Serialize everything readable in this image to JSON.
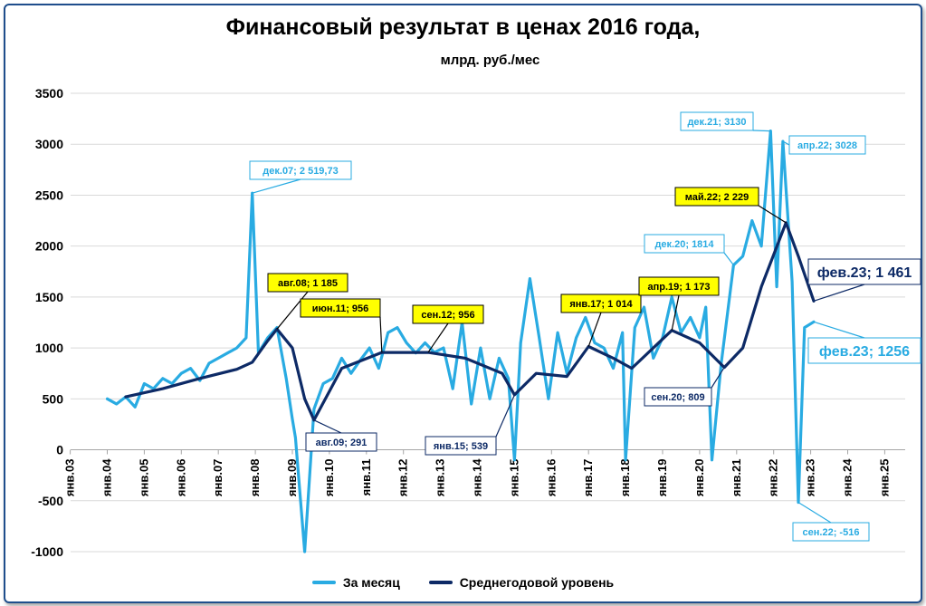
{
  "chart_data": {
    "type": "line",
    "title": "Финансовый результат в ценах 2016 года,",
    "subtitle": "млрд. руб./мес",
    "ylim": [
      -1000,
      3500
    ],
    "yticks": [
      -1000,
      -500,
      0,
      500,
      1000,
      1500,
      2000,
      2500,
      3000,
      3500
    ],
    "xlim": [
      "2003-01",
      "2025-12"
    ],
    "xticks": [
      "янв.03",
      "янв.04",
      "янв.05",
      "янв.06",
      "янв.07",
      "янв.08",
      "янв.09",
      "янв.10",
      "янв.11",
      "янв.12",
      "янв.13",
      "янв.14",
      "янв.15",
      "янв.16",
      "янв.17",
      "янв.18",
      "янв.19",
      "янв.20",
      "янв.21",
      "янв.22",
      "янв.23",
      "янв.24",
      "янв.25"
    ],
    "grid": "horizontal",
    "legend_position": "bottom",
    "colors": {
      "monthly": "#29abe2",
      "annual": "#0d2a66",
      "highlight": "#ffff00"
    },
    "series": [
      {
        "name": "За месяц",
        "x": [
          "2004-01",
          "2004-04",
          "2004-07",
          "2004-10",
          "2005-01",
          "2005-04",
          "2005-07",
          "2005-10",
          "2006-01",
          "2006-04",
          "2006-07",
          "2006-10",
          "2007-01",
          "2007-04",
          "2007-07",
          "2007-10",
          "2007-12",
          "2008-02",
          "2008-05",
          "2008-08",
          "2008-11",
          "2009-01",
          "2009-02",
          "2009-05",
          "2009-08",
          "2009-11",
          "2010-02",
          "2010-05",
          "2010-08",
          "2010-11",
          "2011-02",
          "2011-05",
          "2011-08",
          "2011-11",
          "2012-02",
          "2012-05",
          "2012-08",
          "2012-11",
          "2013-02",
          "2013-05",
          "2013-08",
          "2013-11",
          "2014-02",
          "2014-05",
          "2014-08",
          "2014-11",
          "2015-01",
          "2015-03",
          "2015-06",
          "2015-09",
          "2015-12",
          "2016-03",
          "2016-06",
          "2016-09",
          "2016-12",
          "2017-03",
          "2017-06",
          "2017-09",
          "2017-12",
          "2018-01",
          "2018-04",
          "2018-07",
          "2018-10",
          "2019-01",
          "2019-04",
          "2019-07",
          "2019-10",
          "2020-01",
          "2020-03",
          "2020-05",
          "2020-08",
          "2020-12",
          "2021-03",
          "2021-06",
          "2021-09",
          "2021-12",
          "2022-02",
          "2022-04",
          "2022-07",
          "2022-09",
          "2022-11",
          "2023-02"
        ],
        "values": [
          500,
          450,
          520,
          420,
          650,
          600,
          700,
          650,
          750,
          800,
          680,
          850,
          900,
          950,
          1000,
          1100,
          2519.73,
          950,
          1100,
          1200,
          700,
          300,
          120,
          -1000,
          400,
          650,
          700,
          900,
          750,
          880,
          1000,
          800,
          1150,
          1200,
          1050,
          950,
          1050,
          956,
          1000,
          600,
          1250,
          450,
          1000,
          500,
          900,
          700,
          -100,
          1050,
          1680,
          1100,
          500,
          1150,
          750,
          1100,
          1300,
          1050,
          1000,
          800,
          1150,
          -100,
          1200,
          1400,
          900,
          1100,
          1500,
          1150,
          1300,
          1100,
          1400,
          -100,
          850,
          1814,
          1900,
          2250,
          2000,
          3130,
          1600,
          3028,
          1650,
          -516,
          1200,
          1256
        ]
      },
      {
        "name": "Среднегодовой уровень",
        "x": [
          "2004-07",
          "2005-07",
          "2006-07",
          "2007-07",
          "2007-12",
          "2008-05",
          "2008-08",
          "2009-01",
          "2009-05",
          "2009-08",
          "2010-05",
          "2011-06",
          "2012-09",
          "2013-09",
          "2014-09",
          "2015-01",
          "2015-08",
          "2016-06",
          "2017-01",
          "2017-09",
          "2018-03",
          "2019-04",
          "2020-01",
          "2020-09",
          "2021-03",
          "2021-09",
          "2022-05",
          "2022-09",
          "2023-02"
        ],
        "values": [
          520,
          600,
          700,
          790,
          860,
          1070,
          1185,
          1000,
          500,
          291,
          800,
          956,
          956,
          900,
          750,
          539,
          750,
          720,
          1014,
          900,
          800,
          1173,
          1050,
          809,
          1000,
          1600,
          2229,
          1900,
          1461
        ]
      }
    ],
    "annotations": [
      {
        "label": "дек.07;  2 519,73",
        "series": "За месяц",
        "style": "outline"
      },
      {
        "label": "авг.08; 1 185",
        "series": "Среднегодовой уровень",
        "style": "yellow"
      },
      {
        "label": "июн.11; 956",
        "series": "Среднегодовой уровень",
        "style": "yellow"
      },
      {
        "label": "сен.12; 956",
        "series": "Среднегодовой уровень",
        "style": "yellow"
      },
      {
        "label": "авг.09; 291",
        "series": "Среднегодовой уровень",
        "style": "outline-dark"
      },
      {
        "label": "янв.15; 539",
        "series": "Среднегодовой уровень",
        "style": "outline-dark"
      },
      {
        "label": "янв.17; 1 014",
        "series": "Среднегодовой уровень",
        "style": "yellow"
      },
      {
        "label": "апр.19; 1 173",
        "series": "Среднегодовой уровень",
        "style": "yellow"
      },
      {
        "label": "сен.20; 809",
        "series": "Среднегодовой уровень",
        "style": "outline-dark"
      },
      {
        "label": "дек.20; 1814",
        "series": "За месяц",
        "style": "outline"
      },
      {
        "label": "дек.21; 3130",
        "series": "За месяц",
        "style": "outline"
      },
      {
        "label": "апр.22; 3028",
        "series": "За месяц",
        "style": "outline"
      },
      {
        "label": "май.22; 2 229",
        "series": "Среднегодовой уровень",
        "style": "yellow"
      },
      {
        "label": "фев.23; 1 461",
        "series": "Среднегодовой уровень",
        "style": "outline-dark-large"
      },
      {
        "label": "фев.23; 1256",
        "series": "За месяц",
        "style": "outline-large"
      },
      {
        "label": "сен.22; -516",
        "series": "За месяц",
        "style": "outline"
      }
    ]
  }
}
